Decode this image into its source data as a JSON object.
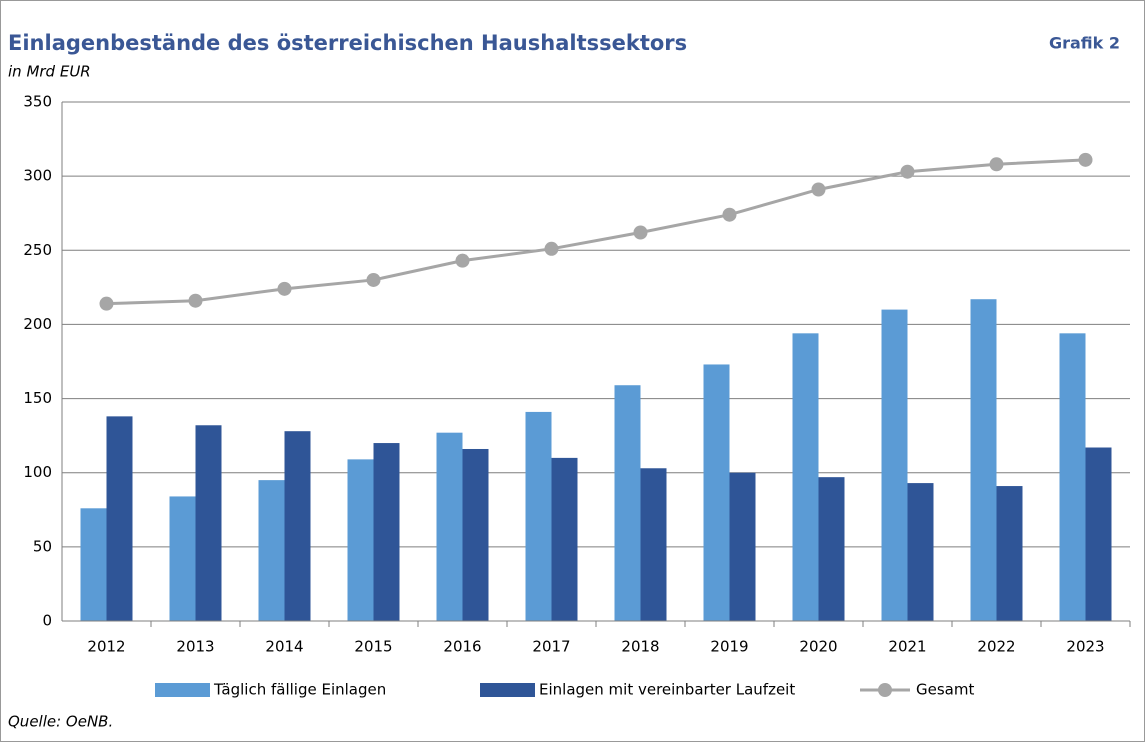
{
  "chart_data": {
    "type": "bar",
    "title": "Einlagenbestände des österreichischen Haushaltssektors",
    "label": "Grafik 2",
    "subtitle": "in Mrd EUR",
    "source": "Quelle: OeNB.",
    "categories": [
      "2012",
      "2013",
      "2014",
      "2015",
      "2016",
      "2017",
      "2018",
      "2019",
      "2020",
      "2021",
      "2022",
      "2023"
    ],
    "series": [
      {
        "name": "Täglich fällige Einlagen",
        "type": "bar",
        "color": "#5b9bd5",
        "values": [
          76,
          84,
          95,
          109,
          127,
          141,
          159,
          173,
          194,
          210,
          217,
          194
        ]
      },
      {
        "name": "Einlagen mit vereinbarter Laufzeit",
        "type": "bar",
        "color": "#2f5597",
        "values": [
          138,
          132,
          128,
          120,
          116,
          110,
          103,
          100,
          97,
          93,
          91,
          117
        ]
      },
      {
        "name": "Gesamt",
        "type": "line",
        "color": "#a6a6a6",
        "values": [
          214,
          216,
          224,
          230,
          243,
          251,
          262,
          274,
          291,
          303,
          308,
          311
        ]
      }
    ],
    "ylim": [
      0,
      350
    ],
    "yticks": [
      0,
      50,
      100,
      150,
      200,
      250,
      300,
      350
    ],
    "grid": true,
    "legend": "bottom"
  }
}
